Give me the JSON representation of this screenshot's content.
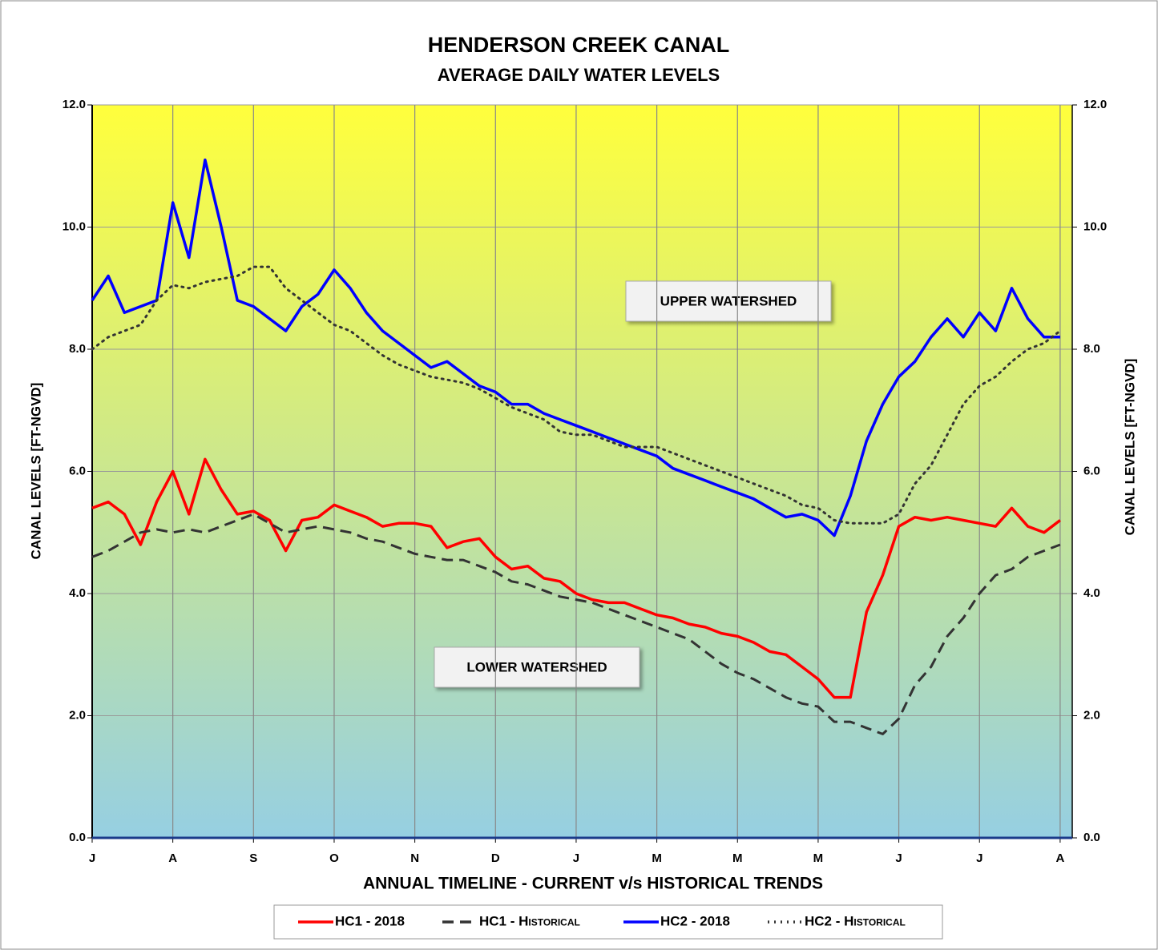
{
  "chart_data": {
    "type": "line",
    "title": "HENDERSON CREEK CANAL",
    "subtitle": "AVERAGE DAILY WATER LEVELS",
    "xlabel": "ANNUAL TIMELINE - CURRENT v/s HISTORICAL TRENDS",
    "ylabel": "CANAL LEVELS [FT-NGVD]",
    "y2label": "CANAL LEVELS [FT-NGVD]",
    "annotations": [
      "UPPER WATERSHED",
      "LOWER WATERSHED"
    ],
    "x": [
      0,
      0.2,
      0.4,
      0.6,
      0.8,
      1,
      1.2,
      1.4,
      1.6,
      1.8,
      2,
      2.2,
      2.4,
      2.6,
      2.8,
      3,
      3.2,
      3.4,
      3.6,
      3.8,
      4,
      4.2,
      4.4,
      4.6,
      4.8,
      5,
      5.2,
      5.4,
      5.6,
      5.8,
      6,
      6.2,
      6.4,
      6.6,
      6.8,
      7,
      7.2,
      7.4,
      7.6,
      7.8,
      8,
      8.2,
      8.4,
      8.6,
      8.8,
      9,
      9.2,
      9.4,
      9.6,
      9.8,
      10,
      10.2,
      10.4,
      10.6,
      10.8,
      11,
      11.2,
      11.4,
      11.6,
      11.8,
      12
    ],
    "xlim": [
      0,
      12.15
    ],
    "xticks": [
      {
        "value": 0,
        "label": "J"
      },
      {
        "value": 1,
        "label": "A"
      },
      {
        "value": 2,
        "label": "S"
      },
      {
        "value": 3,
        "label": "O"
      },
      {
        "value": 4,
        "label": "N"
      },
      {
        "value": 5,
        "label": "D"
      },
      {
        "value": 6,
        "label": "J"
      },
      {
        "value": 7,
        "label": "M"
      },
      {
        "value": 8,
        "label": "M"
      },
      {
        "value": 9,
        "label": "M"
      },
      {
        "value": 10,
        "label": "J"
      },
      {
        "value": 11,
        "label": "J"
      },
      {
        "value": 12,
        "label": "A"
      }
    ],
    "ylim": [
      0,
      12
    ],
    "yticks": [
      {
        "value": 0,
        "label": "0.0"
      },
      {
        "value": 2,
        "label": "2.0"
      },
      {
        "value": 4,
        "label": "4.0"
      },
      {
        "value": 6,
        "label": "6.0"
      },
      {
        "value": 8,
        "label": "8.0"
      },
      {
        "value": 10,
        "label": "10.0"
      },
      {
        "value": 12,
        "label": "12.0"
      }
    ],
    "y2lim": [
      0,
      12
    ],
    "y2ticks": [
      {
        "value": 0,
        "label": "0.0"
      },
      {
        "value": 2,
        "label": "2.0"
      },
      {
        "value": 4,
        "label": "4.0"
      },
      {
        "value": 6,
        "label": "6.0"
      },
      {
        "value": 8,
        "label": "8.0"
      },
      {
        "value": 10,
        "label": "10.0"
      },
      {
        "value": 12,
        "label": "12.0"
      }
    ],
    "grid": true,
    "legend": "bottom",
    "series": [
      {
        "name": "HC1 - 2018",
        "color": "#ff0000",
        "style": "solid",
        "values": [
          5.4,
          5.5,
          5.3,
          4.8,
          5.5,
          6.0,
          5.3,
          6.2,
          5.7,
          5.3,
          5.35,
          5.2,
          4.7,
          5.2,
          5.25,
          5.45,
          5.35,
          5.25,
          5.1,
          5.15,
          5.15,
          5.1,
          4.75,
          4.85,
          4.9,
          4.6,
          4.4,
          4.45,
          4.25,
          4.2,
          4.0,
          3.9,
          3.85,
          3.85,
          3.75,
          3.65,
          3.6,
          3.5,
          3.45,
          3.35,
          3.3,
          3.2,
          3.05,
          3.0,
          2.8,
          2.6,
          2.3,
          2.3,
          3.7,
          4.3,
          5.1,
          5.25,
          5.2,
          5.25,
          5.2,
          5.15,
          5.1,
          5.4,
          5.1,
          5.0,
          5.2
        ]
      },
      {
        "name": "HC1 - Historical",
        "color": "#333333",
        "style": "dashed",
        "values": [
          4.6,
          4.7,
          4.85,
          5.0,
          5.05,
          5.0,
          5.05,
          5.0,
          5.1,
          5.2,
          5.3,
          5.15,
          5.0,
          5.05,
          5.1,
          5.05,
          5.0,
          4.9,
          4.85,
          4.75,
          4.65,
          4.6,
          4.55,
          4.55,
          4.45,
          4.35,
          4.2,
          4.15,
          4.05,
          3.95,
          3.9,
          3.85,
          3.75,
          3.65,
          3.55,
          3.45,
          3.35,
          3.25,
          3.05,
          2.85,
          2.7,
          2.6,
          2.45,
          2.3,
          2.2,
          2.15,
          1.9,
          1.9,
          1.8,
          1.7,
          1.95,
          2.5,
          2.8,
          3.3,
          3.6,
          4.0,
          4.3,
          4.4,
          4.6,
          4.7,
          4.8
        ]
      },
      {
        "name": "HC2 - 2018",
        "color": "#0000ff",
        "style": "solid",
        "values": [
          8.8,
          9.2,
          8.6,
          8.7,
          8.8,
          10.4,
          9.5,
          11.1,
          10.0,
          8.8,
          8.7,
          8.5,
          8.3,
          8.7,
          8.9,
          9.3,
          9.0,
          8.6,
          8.3,
          8.1,
          7.9,
          7.7,
          7.8,
          7.6,
          7.4,
          7.3,
          7.1,
          7.1,
          6.95,
          6.85,
          6.75,
          6.65,
          6.55,
          6.45,
          6.35,
          6.25,
          6.05,
          5.95,
          5.85,
          5.75,
          5.65,
          5.55,
          5.4,
          5.25,
          5.3,
          5.2,
          4.95,
          5.6,
          6.5,
          7.1,
          7.55,
          7.8,
          8.2,
          8.5,
          8.2,
          8.6,
          8.3,
          9.0,
          8.5,
          8.2,
          8.2
        ]
      },
      {
        "name": "HC2 - Historical",
        "color": "#333333",
        "style": "dotted",
        "values": [
          8.0,
          8.2,
          8.3,
          8.4,
          8.8,
          9.05,
          9.0,
          9.1,
          9.15,
          9.2,
          9.35,
          9.35,
          9.0,
          8.8,
          8.6,
          8.4,
          8.3,
          8.1,
          7.9,
          7.75,
          7.65,
          7.55,
          7.5,
          7.45,
          7.35,
          7.2,
          7.05,
          6.95,
          6.85,
          6.65,
          6.6,
          6.6,
          6.5,
          6.4,
          6.4,
          6.4,
          6.3,
          6.2,
          6.1,
          6.0,
          5.9,
          5.8,
          5.7,
          5.6,
          5.45,
          5.4,
          5.2,
          5.15,
          5.15,
          5.15,
          5.3,
          5.8,
          6.1,
          6.6,
          7.1,
          7.4,
          7.55,
          7.8,
          8.0,
          8.1,
          8.3
        ]
      }
    ]
  }
}
